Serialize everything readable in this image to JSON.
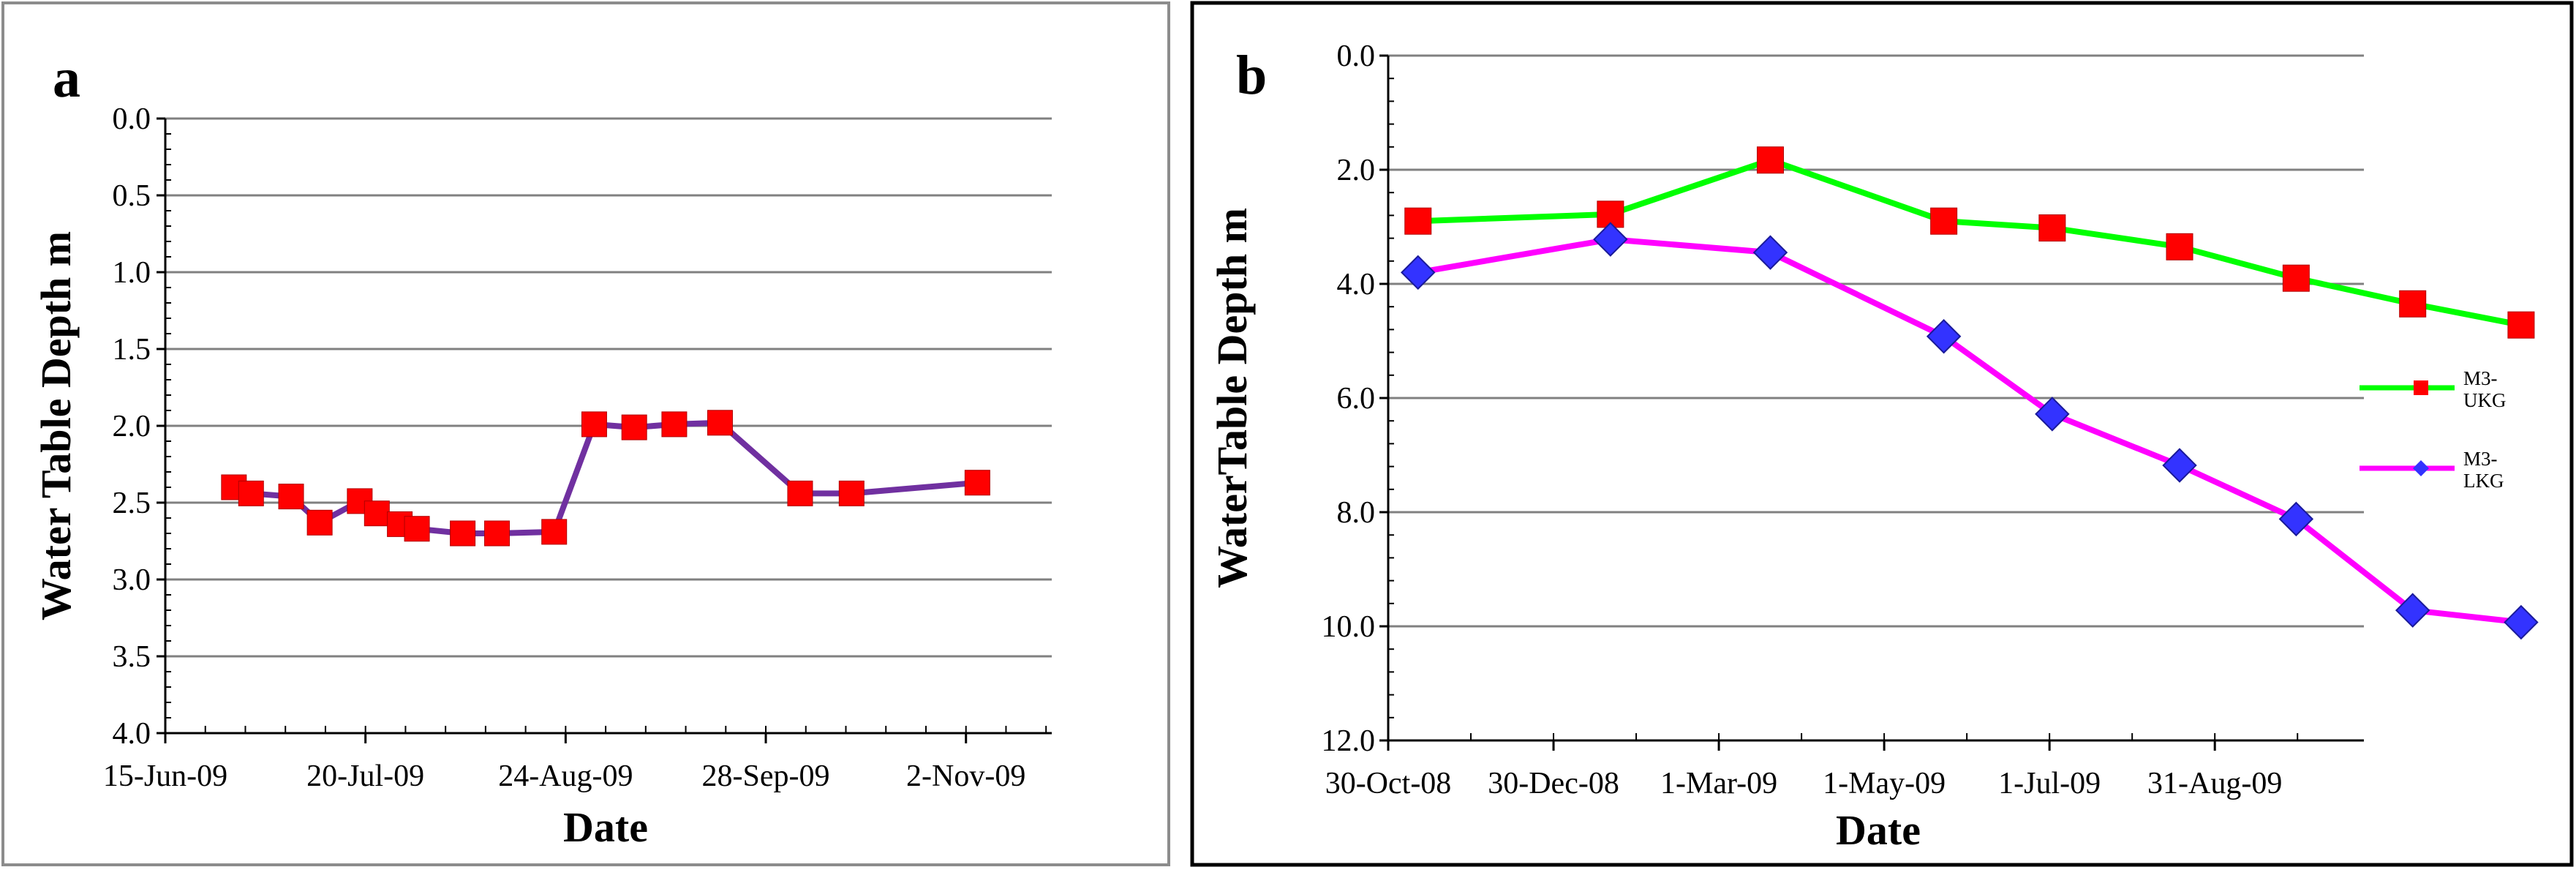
{
  "chart_data": [
    {
      "type": "line",
      "panel_label": "a",
      "xlabel": "Date",
      "ylabel": "Water Table Depth m",
      "y_inverted": true,
      "ylim": [
        0.0,
        4.0
      ],
      "yticks": [
        "0.0",
        "0.5",
        "1.0",
        "1.5",
        "2.0",
        "2.5",
        "3.0",
        "3.5",
        "4.0"
      ],
      "ytick_values": [
        0.0,
        0.5,
        1.0,
        1.5,
        2.0,
        2.5,
        3.0,
        3.5,
        4.0
      ],
      "xlim_days": [
        0,
        155
      ],
      "xtick_days": [
        0,
        35,
        70,
        105,
        140
      ],
      "xticks": [
        "15-Jun-09",
        "20-Jul-09",
        "24-Aug-09",
        "28-Sep-09",
        "2-Nov-09"
      ],
      "x_minor_step_days": 7,
      "grid": true,
      "colors": {
        "line": "#7030A0",
        "marker": "#FF0000"
      },
      "series": [
        {
          "name": "",
          "x_days": [
            12,
            15,
            22,
            27,
            34,
            37,
            41,
            44,
            52,
            58,
            68,
            75,
            82,
            89,
            97,
            111,
            120,
            142
          ],
          "values": [
            2.4,
            2.44,
            2.46,
            2.63,
            2.49,
            2.57,
            2.64,
            2.67,
            2.7,
            2.7,
            2.69,
            1.99,
            2.01,
            1.99,
            1.98,
            2.44,
            2.44,
            2.37
          ]
        }
      ]
    },
    {
      "type": "line",
      "panel_label": "b",
      "xlabel": "Date",
      "ylabel": "WaterTable Depth m",
      "y_inverted": true,
      "ylim": [
        0.0,
        12.0
      ],
      "yticks": [
        "0.0",
        "2.0",
        "4.0",
        "6.0",
        "8.0",
        "10.0",
        "12.0"
      ],
      "ytick_values": [
        0.0,
        2.0,
        4.0,
        6.0,
        8.0,
        10.0,
        12.0
      ],
      "xlim_days": [
        0,
        360
      ],
      "xtick_days": [
        0,
        61,
        122,
        183,
        244,
        305
      ],
      "xticks": [
        "30-Oct-08",
        "30-Dec-08",
        "1-Mar-09",
        "1-May-09",
        "1-Jul-09",
        "31-Aug-09"
      ],
      "x_minor_step_days": 30.5,
      "grid": true,
      "legend_position": "right",
      "series": [
        {
          "name": "M3-UKG",
          "label_lines": [
            "M3-",
            "UKG"
          ],
          "marker": "square",
          "line_color": "#00FF00",
          "marker_color": "#FF0000",
          "x_days": [
            11,
            82,
            141,
            205,
            245,
            292,
            335,
            378,
            418
          ],
          "values": [
            2.9,
            2.78,
            1.83,
            2.9,
            3.02,
            3.35,
            3.9,
            4.35,
            4.72
          ]
        },
        {
          "name": "M3-LKG",
          "label_lines": [
            "M3-",
            "LKG"
          ],
          "marker": "diamond",
          "line_color": "#FF00FF",
          "marker_color": "#3333FF",
          "x_days": [
            11,
            82,
            141,
            205,
            245,
            292,
            335,
            378,
            418
          ],
          "values": [
            3.8,
            3.22,
            3.45,
            4.92,
            6.28,
            7.18,
            8.12,
            9.72,
            9.93
          ]
        }
      ]
    }
  ]
}
